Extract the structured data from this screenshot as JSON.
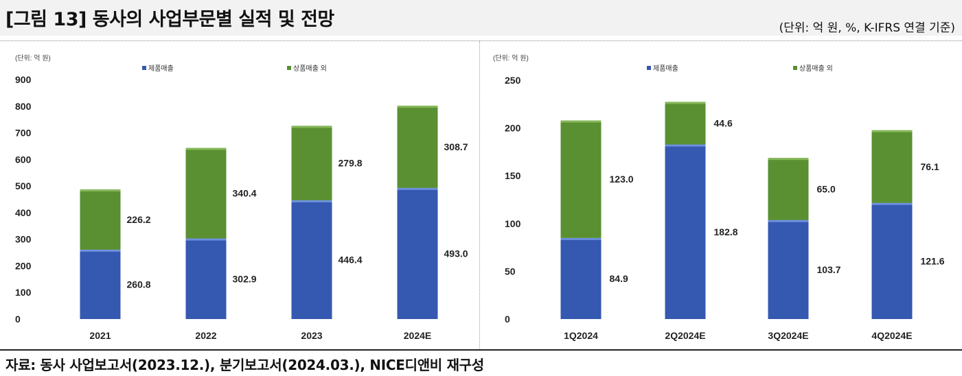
{
  "header": {
    "title": "[그림 13] 동사의 사업부문별 실적 및 전망",
    "unit": "(단위: 억 원, %, K-IFRS 연결 기준)"
  },
  "footer": {
    "source": "자료: 동사 사업보고서(2023.12.), 분기보고서(2024.03.), NICE디앤비 재구성"
  },
  "colors": {
    "product": "#3558b0",
    "goods": "#5a9031"
  },
  "chart_data": [
    {
      "type": "bar",
      "stacked": true,
      "unit_label": "(단위: 억 원)",
      "categories": [
        "2021",
        "2022",
        "2023",
        "2024E"
      ],
      "series": [
        {
          "name": "제품매출",
          "values": [
            260.8,
            302.9,
            446.4,
            493.0
          ]
        },
        {
          "name": "상품매출 외",
          "values": [
            226.2,
            340.4,
            279.8,
            308.7
          ]
        }
      ],
      "ylim": [
        0,
        900
      ],
      "yticks": [
        0,
        100,
        200,
        300,
        400,
        500,
        600,
        700,
        800,
        900
      ],
      "legend": "top"
    },
    {
      "type": "bar",
      "stacked": true,
      "unit_label": "(단위: 억 원)",
      "categories": [
        "1Q2024",
        "2Q2024E",
        "3Q2024E",
        "4Q2024E"
      ],
      "series": [
        {
          "name": "제품매출",
          "values": [
            84.9,
            182.8,
            103.7,
            121.6
          ]
        },
        {
          "name": "상품매출 외",
          "values": [
            123.0,
            44.6,
            65.0,
            76.1
          ]
        }
      ],
      "ylim": [
        0,
        250
      ],
      "yticks": [
        0,
        50,
        100,
        150,
        200,
        250
      ],
      "legend": "top"
    }
  ]
}
